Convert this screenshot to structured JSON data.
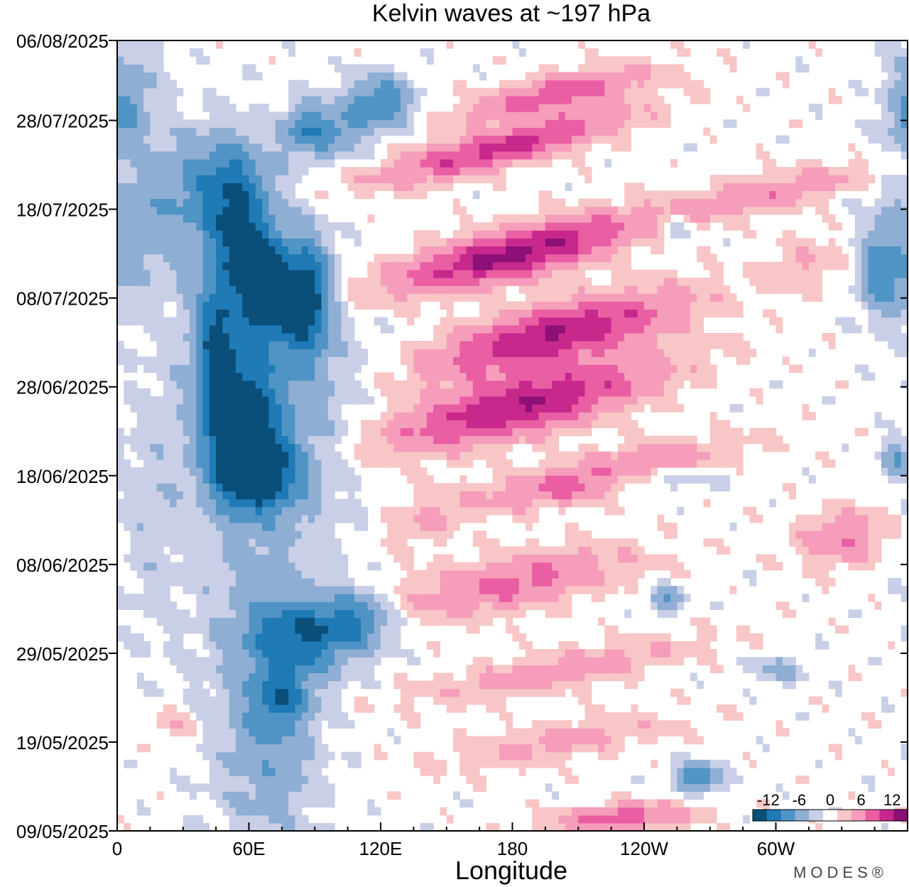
{
  "chart_data": {
    "type": "heatmap",
    "title": "Kelvin waves at ~197 hPa",
    "xlabel": "Longitude",
    "ylabel": "",
    "x_ticks": [
      "0",
      "60E",
      "120E",
      "180",
      "120W",
      "60W"
    ],
    "x_tick_values": [
      0,
      60,
      120,
      180,
      240,
      300
    ],
    "xlim": [
      0,
      360
    ],
    "y_ticks": [
      "06/08/2025",
      "28/07/2025",
      "18/07/2025",
      "08/07/2025",
      "28/06/2025",
      "18/06/2025",
      "08/06/2025",
      "29/05/2025",
      "19/05/2025",
      "09/05/2025"
    ],
    "y_tick_days": [
      89,
      80,
      70,
      60,
      50,
      40,
      30,
      20,
      10,
      0
    ],
    "ylim_days": [
      0,
      89
    ],
    "colorbar": {
      "ticks": [
        "-12",
        "-6",
        "0",
        "6",
        "12"
      ],
      "tick_values": [
        -12,
        -6,
        0,
        6,
        12
      ],
      "levels": [
        -15,
        -12,
        -9,
        -6,
        -3,
        -1,
        1,
        3,
        6,
        9,
        12,
        15
      ],
      "colors": [
        "#0a4f7a",
        "#1f7ab5",
        "#4f94c4",
        "#8faed4",
        "#c9cfe6",
        "#ffffff",
        "#f8c6c6",
        "#f59dbb",
        "#ea5ea3",
        "#c8288c",
        "#8c1077"
      ]
    },
    "features": [
      {
        "name": "negative anomaly core",
        "lon_range": [
          40,
          100
        ],
        "days": [
          45,
          70
        ],
        "min": -13
      },
      {
        "name": "negative anomaly band",
        "lon_range": [
          60,
          125
        ],
        "days": [
          20,
          35
        ],
        "min": -10
      },
      {
        "name": "positive eastward bands",
        "lon_range": [
          130,
          330
        ],
        "days": [
          35,
          85
        ],
        "max": 13
      }
    ]
  },
  "brand": "MODES®",
  "colors": {
    "axis": "#000000",
    "background": "#ffffff"
  }
}
